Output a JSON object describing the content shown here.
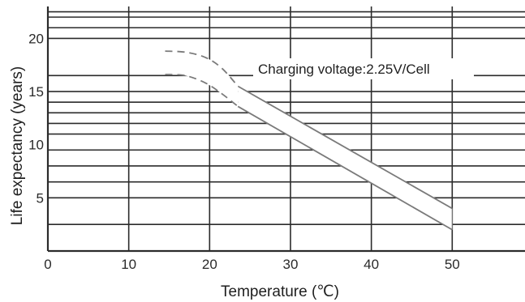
{
  "chart_data": {
    "type": "area",
    "xlabel": "Temperature (℃)",
    "ylabel": "Life expectancy (years)",
    "annotation": "Charging voltage:2.25V/Cell",
    "xlim": [
      0,
      59
    ],
    "ylim": [
      0,
      23
    ],
    "x_ticks": [
      0,
      10,
      20,
      30,
      40,
      50
    ],
    "y_ticks": [
      5,
      10,
      15,
      20
    ],
    "x_gridlines": [
      10,
      20,
      30,
      40,
      50
    ],
    "y_gridlines": [
      2.5,
      5,
      6.5,
      8,
      9.5,
      11,
      12,
      13,
      14,
      15,
      16.5,
      20,
      21,
      22,
      22.5
    ],
    "grid": true,
    "band": {
      "dashed": {
        "upper": [
          [
            14.5,
            18.8
          ],
          [
            17,
            18.7
          ],
          [
            19.5,
            18.2
          ],
          [
            21.5,
            17.2
          ],
          [
            23.5,
            15.5
          ]
        ],
        "lower": [
          [
            14.5,
            16.6
          ],
          [
            17,
            16.5
          ],
          [
            19.5,
            15.8
          ],
          [
            21.5,
            14.8
          ],
          [
            23.5,
            13.6
          ]
        ]
      },
      "solid": {
        "upper": [
          [
            23.5,
            15.5
          ],
          [
            50,
            4.0
          ]
        ],
        "lower": [
          [
            23.5,
            13.6
          ],
          [
            50,
            2.0
          ]
        ]
      }
    },
    "colors": {
      "grid": "#2b2b2b",
      "band_fill": "#ffffff",
      "band_edge": "#6e6e6e",
      "band_stroke": "#7a7a7a"
    }
  }
}
